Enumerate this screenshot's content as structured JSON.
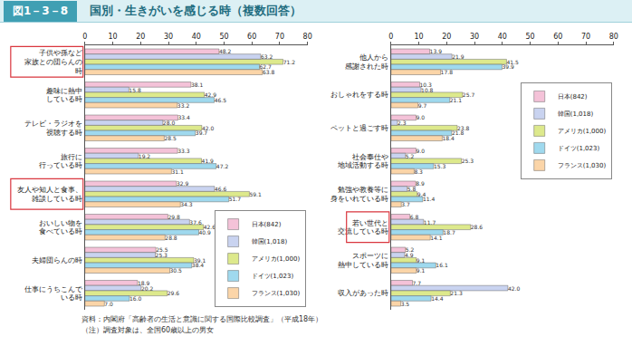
{
  "header": {
    "figure": "図1－3－8",
    "title": "国別・生きがいを感じる時（複数回答）"
  },
  "notes": [
    "資料：内閣府「高齢者の生活と意識に関する国際比較調査」（平成18年）",
    "（注）調査対象は、全国60歳以上の男女"
  ],
  "chart_data": [
    {
      "type": "bar",
      "orientation": "horizontal",
      "data_labels": true,
      "grid": false,
      "legend": "lower right",
      "xlim": [
        0,
        80
      ],
      "xticks": [
        0,
        10,
        20,
        30,
        40,
        50,
        60,
        70,
        80
      ],
      "categories": [
        "子供や孫など\n家族との団らんの\n時",
        "趣味に熱中\nしている時",
        "テレビ・ラジオを\n視聴する時",
        "旅行に\n行っている時",
        "友人や知人と食事、\n雑談している時",
        "おいしい物を\n食べている時",
        "夫婦団らんの時",
        "仕事にうちこんで\nいる時"
      ],
      "series": [
        {
          "name": "日本(842)",
          "color": "#f4c2d8",
          "values": [
            48.2,
            38.1,
            33.4,
            33.3,
            32.9,
            29.8,
            25.5,
            18.9
          ],
          "value_labels": [
            "48.2",
            "38.1",
            "33.4",
            "33.3",
            "32.9",
            "29.8",
            "25.5",
            "18.9"
          ]
        },
        {
          "name": "韓国(1,018)",
          "color": "#c9d3f0",
          "values": [
            63.2,
            15.8,
            28.0,
            19.2,
            46.6,
            37.6,
            25.3,
            20.2
          ],
          "value_labels": [
            "63.2",
            "15.8",
            "28.0",
            "19.2",
            "46.6",
            "37.6",
            "25.3",
            "20.2"
          ]
        },
        {
          "name": "アメリカ(1,000)",
          "color": "#dde98c",
          "values": [
            71.2,
            42.9,
            42.0,
            41.9,
            59.1,
            42.6,
            39.1,
            29.6
          ],
          "value_labels": [
            "71.2",
            "42.9",
            "42.0",
            "41.9",
            "59.1",
            "42.6",
            "39.1",
            "29.6"
          ]
        },
        {
          "name": "ドイツ(1,023)",
          "color": "#9fd9ee",
          "values": [
            62.7,
            46.5,
            39.7,
            47.2,
            51.7,
            40.9,
            38.4,
            16.0
          ],
          "value_labels": [
            "62.7",
            "46.5",
            "39.7",
            "47.2",
            "51.7",
            "40.9",
            "38.4",
            "16.0"
          ]
        },
        {
          "name": "フランス(1,030)",
          "color": "#fbd5a8",
          "values": [
            63.8,
            33.2,
            28.5,
            31.1,
            34.3,
            28.8,
            30.5,
            7.0
          ],
          "value_labels": [
            "63.8",
            "33.2",
            "28.5",
            "31.1",
            "34.3",
            "28.8",
            "30.5",
            "7.0"
          ]
        }
      ]
    },
    {
      "type": "bar",
      "orientation": "horizontal",
      "data_labels": true,
      "grid": false,
      "legend": "upper right",
      "xlim": [
        0,
        80
      ],
      "xticks": [
        0,
        10,
        20,
        30,
        40,
        50,
        60,
        70,
        80
      ],
      "categories": [
        "他人から\n感謝された時",
        "おしゃれをする時",
        "ペットと過ごす時",
        "社会奉仕や\n地域活動する時",
        "勉強や教養等に\n身をいれている時",
        "若い世代と\n交流している時",
        "スポーツに\n熱中している時",
        "収入があった時"
      ],
      "series": [
        {
          "name": "日本(842)",
          "color": "#f4c2d8",
          "values": [
            13.9,
            10.3,
            9.0,
            9.0,
            8.9,
            6.8,
            5.2,
            7.7
          ],
          "value_labels": [
            "13.9",
            "10.3",
            "9.0",
            "9.0",
            "8.9",
            "6.8",
            "5.2",
            "7.7"
          ]
        },
        {
          "name": "韓国(1,018)",
          "color": "#c9d3f0",
          "values": [
            21.9,
            10.8,
            2.3,
            5.2,
            5.8,
            11.7,
            4.9,
            42.0
          ],
          "value_labels": [
            "21.9",
            "10.8",
            "2.3",
            "5.2",
            "5.8",
            "11.7",
            "4.9",
            "42.0"
          ]
        },
        {
          "name": "アメリカ(1,000)",
          "color": "#dde98c",
          "values": [
            41.5,
            25.7,
            23.8,
            25.3,
            9.4,
            28.6,
            9.1,
            21.3
          ],
          "value_labels": [
            "41.5",
            "25.7",
            "23.8",
            "25.3",
            "9.4",
            "28.6",
            "9.1",
            "21.3"
          ]
        },
        {
          "name": "ドイツ(1,023)",
          "color": "#9fd9ee",
          "values": [
            39.9,
            21.1,
            21.8,
            15.3,
            11.4,
            18.7,
            16.1,
            14.4
          ],
          "value_labels": [
            "39.9",
            "21.1",
            "21.8",
            "15.3",
            "11.4",
            "18.7",
            "16.1",
            "14.4"
          ]
        },
        {
          "name": "フランス(1,030)",
          "color": "#fbd5a8",
          "values": [
            17.8,
            9.7,
            18.4,
            8.3,
            3.7,
            14.1,
            9.1,
            3.5
          ],
          "value_labels": [
            "17.8",
            "9.7",
            "18.4",
            "8.3",
            "3.7",
            "14.1",
            "9.1",
            "3.5"
          ]
        }
      ]
    }
  ]
}
